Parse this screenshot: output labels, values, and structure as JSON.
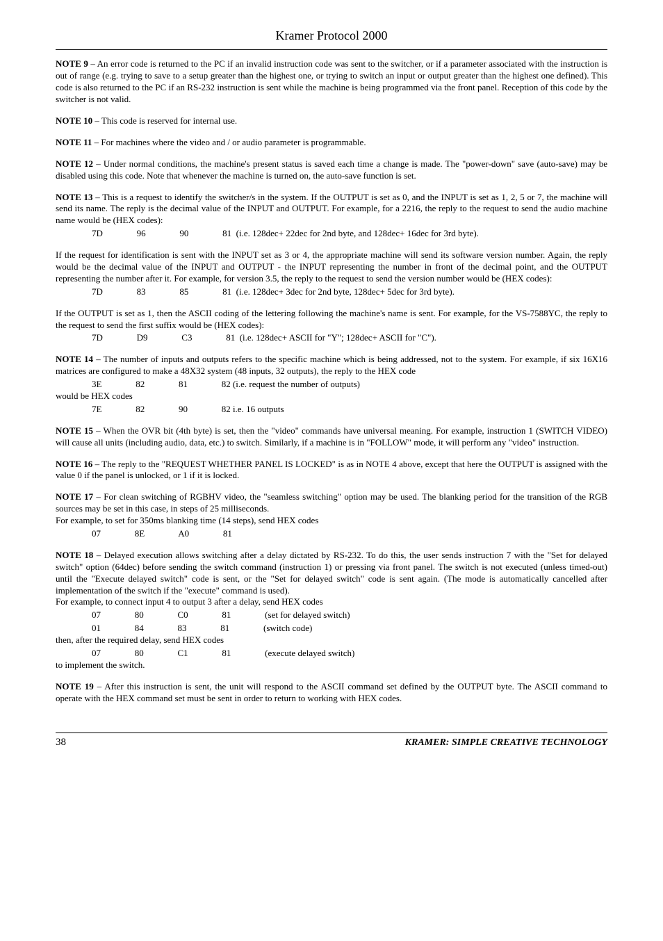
{
  "header": {
    "title": "Kramer Protocol 2000"
  },
  "notes": {
    "n9": {
      "label": "NOTE 9",
      "text": " – An error code is returned to the PC if an invalid instruction code was sent to the switcher, or if a parameter associated with the instruction is out of range (e.g. trying to save to a setup greater than the highest one, or trying to switch an input or output greater than the highest one defined). This code is also returned to the PC if an RS-232 instruction is sent while the machine is being programmed via the front panel. Reception of this code by the switcher is not valid."
    },
    "n10": {
      "label": "NOTE 10",
      "text": " – This code is reserved for internal use."
    },
    "n11": {
      "label": "NOTE 11",
      "text": " –  For machines where the video and / or audio parameter is programmable."
    },
    "n12": {
      "label": "NOTE 12",
      "text": " – Under normal conditions, the machine's present status is saved each time a change is made. The \"power-down\" save (auto-save) may be disabled using this code. Note that whenever the machine is turned on, the auto-save function is set."
    },
    "n13": {
      "label": "NOTE 13",
      "text": " – This is a request to identify the switcher/s in the system. If the OUTPUT is set as 0, and the INPUT is set as 1, 2, 5 or 7, the machine will send its name. The reply is the decimal value of the INPUT and OUTPUT. For example, for a 2216, the reply to the request to send the audio machine name would be (HEX codes):",
      "hex1": "                7D               96               90               81  (i.e. 128dec+ 22dec for 2nd byte, and 128dec+ 16dec for 3rd byte).",
      "p2": "If the request for identification is sent with the INPUT set as 3 or 4, the appropriate machine will send its software version number. Again, the reply would be the decimal value of the INPUT and OUTPUT - the INPUT representing the number in front of the decimal point, and the OUTPUT representing the number after it. For example, for version 3.5, the reply to the request to send the version number would be (HEX codes):",
      "hex2": "                7D               83               85               81  (i.e. 128dec+ 3dec for 2nd byte, 128dec+ 5dec for 3rd byte).",
      "p3": "If the OUTPUT is set as 1, then the ASCII coding of the lettering following the machine's name is sent. For example, for the VS-7588YC, the reply to the request to send the first suffix would be (HEX codes):",
      "hex3": "                7D               D9               C3               81  (i.e. 128dec+ ASCII for \"Y\"; 128dec+ ASCII for \"C\")."
    },
    "n14": {
      "label": "NOTE 14",
      "text": " – The number of inputs and outputs refers to the specific machine which is being addressed, not to the system. For example, if six 16X16 matrices are configured to make a 48X32 system (48 inputs, 32 outputs), the reply to the HEX code",
      "hex1": "                3E               82               81               82 (i.e. request the number of outputs)",
      "mid": "would be HEX codes",
      "hex2": "                7E               82               90               82 i.e. 16 outputs"
    },
    "n15": {
      "label": "NOTE 15",
      "text": " – When the OVR bit (4th byte) is set, then the \"video\" commands have universal meaning. For example, instruction 1 (SWITCH VIDEO) will cause all units (including audio, data, etc.) to switch. Similarly, if a machine is in \"FOLLOW\" mode, it will perform any \"video\" instruction."
    },
    "n16": {
      "label": "NOTE 16",
      "text": " – The reply to the \"REQUEST WHETHER PANEL IS LOCKED\" is as in NOTE 4 above, except that here the OUTPUT is assigned with the value 0 if the panel is unlocked, or 1 if it is locked."
    },
    "n17": {
      "label": "NOTE 17",
      "text": " – For clean switching of RGBHV video, the \"seamless switching\" option may be used. The blanking period for the transition of the RGB sources may be set in this case, in steps of 25 milliseconds.",
      "p2": "For example, to set for 350ms blanking time (14 steps), send HEX codes",
      "hex1": "                07               8E               A0               81"
    },
    "n18": {
      "label": "NOTE 18",
      "text": " – Delayed execution allows switching after a delay dictated by RS-232. To do this, the user sends instruction 7 with the \"Set for delayed switch\" option (64dec) before sending the switch command (instruction 1) or pressing via front panel. The switch is not executed (unless timed-out) until the \"Execute delayed switch\" code is sent, or the \"Set for delayed switch\"  code is sent again. (The mode is automatically cancelled after implementation of the switch if the \"execute\" command is used).",
      "p2": "For example, to connect input 4 to output 3 after a delay, send HEX codes",
      "hex1": "                07               80               C0               81               (set for delayed switch)",
      "hex2": "                01               84               83               81               (switch code)",
      "p3": "then, after the required delay, send HEX codes",
      "hex3": "                07               80               C1               81               (execute delayed switch)",
      "p4": "to implement the switch."
    },
    "n19": {
      "label": "NOTE 19",
      "text": " – After this instruction is sent, the unit will respond to the ASCII command set defined by the OUTPUT byte. The ASCII command to operate with the HEX command set must be sent in order to return to working with HEX codes."
    }
  },
  "footer": {
    "page": "38",
    "brand": "KRAMER: SIMPLE CREATIVE TECHNOLOGY"
  }
}
